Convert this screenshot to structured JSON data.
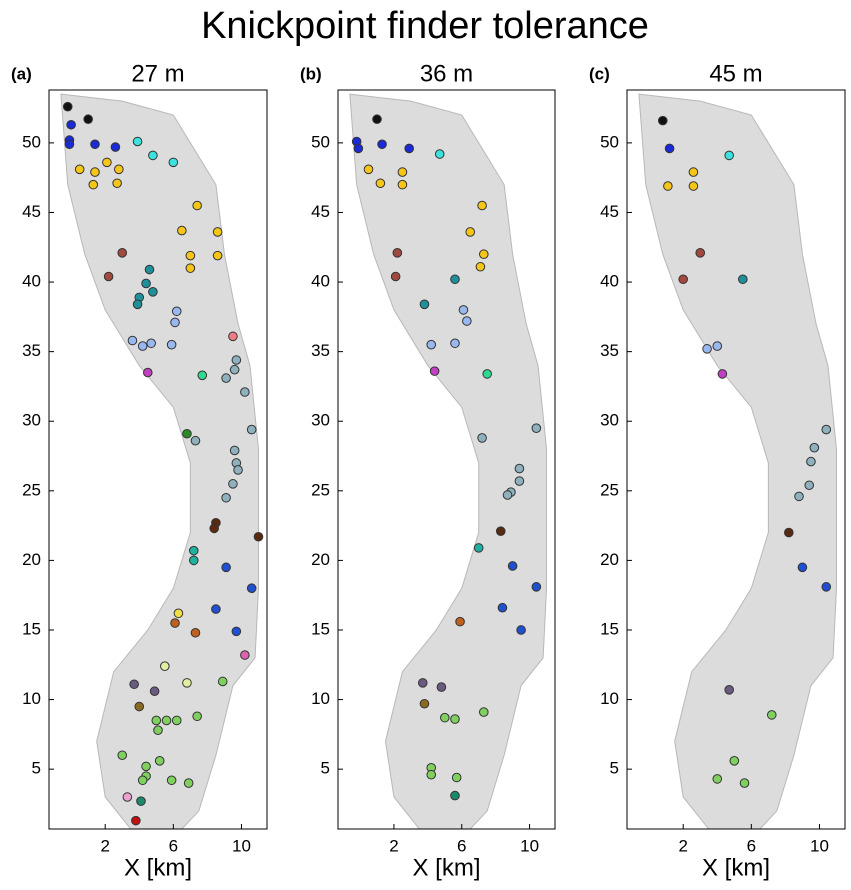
{
  "title": "Knickpoint finder tolerance",
  "chart_data": [
    {
      "type": "scatter",
      "panel_label": "(a)",
      "title": "27 m",
      "xlabel": "X [km]",
      "xlim": [
        -1.3,
        11.5
      ],
      "ylim": [
        0.7,
        53.8
      ],
      "xticks": [
        2,
        6,
        10
      ],
      "yticks": [
        5,
        10,
        15,
        20,
        25,
        30,
        35,
        40,
        45,
        50
      ],
      "series": [
        {
          "color": "#111111",
          "x": [
            -0.2,
            1.0
          ],
          "y": [
            52.6,
            51.7
          ]
        },
        {
          "color": "#1a2bd6",
          "x": [
            0.0,
            -0.1,
            -0.1,
            1.4,
            2.6
          ],
          "y": [
            51.3,
            50.2,
            49.9,
            49.9,
            49.7
          ]
        },
        {
          "color": "#3ee0e0",
          "x": [
            3.9,
            4.8,
            6.0
          ],
          "y": [
            50.1,
            49.1,
            48.6
          ]
        },
        {
          "color": "#f5c518",
          "x": [
            0.5,
            1.4,
            2.1,
            2.8,
            1.3,
            2.7,
            7.4,
            6.5,
            8.6,
            8.6,
            7.0,
            7.0
          ],
          "y": [
            48.1,
            47.9,
            48.6,
            48.1,
            47.0,
            47.1,
            45.5,
            43.7,
            43.6,
            41.9,
            41.9,
            41.0
          ]
        },
        {
          "color": "#a0493e",
          "x": [
            3.0,
            2.2
          ],
          "y": [
            42.1,
            40.4
          ]
        },
        {
          "color": "#1f8f99",
          "x": [
            4.6,
            4.4,
            4.0,
            3.9,
            4.8
          ],
          "y": [
            40.9,
            39.9,
            38.9,
            38.4,
            39.3
          ]
        },
        {
          "color": "#9ab8f0",
          "x": [
            6.2,
            6.1,
            3.6,
            4.2,
            5.9,
            4.7
          ],
          "y": [
            37.9,
            37.1,
            35.8,
            35.4,
            35.5,
            35.6
          ]
        },
        {
          "color": "#f07b84",
          "x": [
            9.5
          ],
          "y": [
            36.1
          ]
        },
        {
          "color": "#c040c0",
          "x": [
            4.5
          ],
          "y": [
            33.5
          ]
        },
        {
          "color": "#30d890",
          "x": [
            7.7
          ],
          "y": [
            33.3
          ]
        },
        {
          "color": "#8fb0bd",
          "x": [
            9.7,
            9.6,
            9.1,
            10.2,
            10.6,
            7.3,
            9.6,
            9.7,
            9.8,
            9.5,
            9.1
          ],
          "y": [
            34.4,
            33.7,
            33.1,
            32.1,
            29.4,
            28.6,
            27.9,
            27.0,
            26.5,
            25.5,
            24.5
          ]
        },
        {
          "color": "#2a8a2a",
          "x": [
            6.8
          ],
          "y": [
            29.1
          ]
        },
        {
          "color": "#5a2a10",
          "x": [
            8.5,
            8.4,
            11.0
          ],
          "y": [
            22.7,
            22.3,
            21.7
          ]
        },
        {
          "color": "#20b0a0",
          "x": [
            7.2,
            7.2
          ],
          "y": [
            20.7,
            20.0
          ]
        },
        {
          "color": "#2050d0",
          "x": [
            9.1,
            10.6,
            8.5,
            9.7
          ],
          "y": [
            19.5,
            18.0,
            16.5,
            14.9
          ]
        },
        {
          "color": "#f0e040",
          "x": [
            6.3
          ],
          "y": [
            16.2
          ]
        },
        {
          "color": "#c06020",
          "x": [
            6.1,
            7.3
          ],
          "y": [
            15.5,
            14.8
          ]
        },
        {
          "color": "#e060b0",
          "x": [
            10.2
          ],
          "y": [
            13.2
          ]
        },
        {
          "color": "#e0f0a0",
          "x": [
            5.5,
            6.8
          ],
          "y": [
            12.4,
            11.2
          ]
        },
        {
          "color": "#6a5a80",
          "x": [
            3.7,
            4.9
          ],
          "y": [
            11.1,
            10.6
          ]
        },
        {
          "color": "#8a6a20",
          "x": [
            4.0
          ],
          "y": [
            9.5
          ]
        },
        {
          "color": "#80d060",
          "x": [
            8.9,
            7.4,
            5.0,
            5.6,
            6.2,
            5.1,
            3.0,
            5.2,
            4.4,
            4.4,
            4.2,
            5.9,
            6.9
          ],
          "y": [
            11.3,
            8.8,
            8.5,
            8.5,
            8.5,
            7.8,
            6.0,
            5.6,
            5.2,
            4.5,
            4.2,
            4.2,
            4.0
          ]
        },
        {
          "color": "#f0a0d0",
          "x": [
            3.3
          ],
          "y": [
            3.0
          ]
        },
        {
          "color": "#1a8a6a",
          "x": [
            4.1
          ],
          "y": [
            2.7
          ]
        },
        {
          "color": "#c01010",
          "x": [
            3.8
          ],
          "y": [
            1.3
          ]
        }
      ]
    },
    {
      "type": "scatter",
      "panel_label": "(b)",
      "title": "36 m",
      "xlabel": "X [km]",
      "xlim": [
        -1.3,
        11.5
      ],
      "ylim": [
        0.7,
        53.8
      ],
      "xticks": [
        2,
        6,
        10
      ],
      "yticks": [
        5,
        10,
        15,
        20,
        25,
        30,
        35,
        40,
        45,
        50
      ],
      "series": [
        {
          "color": "#111111",
          "x": [
            1.0
          ],
          "y": [
            51.7
          ]
        },
        {
          "color": "#1a2bd6",
          "x": [
            -0.2,
            -0.1,
            1.3,
            2.9
          ],
          "y": [
            50.1,
            49.6,
            49.9,
            49.6
          ]
        },
        {
          "color": "#3ee0e0",
          "x": [
            4.7
          ],
          "y": [
            49.2
          ]
        },
        {
          "color": "#f5c518",
          "x": [
            0.5,
            1.2,
            2.5,
            2.5,
            7.2,
            6.5,
            7.3,
            7.1
          ],
          "y": [
            48.1,
            47.1,
            47.9,
            47.0,
            45.5,
            43.6,
            42.0,
            41.1
          ]
        },
        {
          "color": "#a0493e",
          "x": [
            2.2,
            2.1
          ],
          "y": [
            42.1,
            40.4
          ]
        },
        {
          "color": "#1f8f99",
          "x": [
            5.6,
            3.8
          ],
          "y": [
            40.2,
            38.4
          ]
        },
        {
          "color": "#9ab8f0",
          "x": [
            6.1,
            6.3,
            4.2,
            5.6
          ],
          "y": [
            38.0,
            37.2,
            35.5,
            35.6
          ]
        },
        {
          "color": "#c040c0",
          "x": [
            4.4
          ],
          "y": [
            33.6
          ]
        },
        {
          "color": "#30d890",
          "x": [
            7.5
          ],
          "y": [
            33.4
          ]
        },
        {
          "color": "#8fb0bd",
          "x": [
            7.2,
            10.4,
            9.4,
            9.4,
            8.9,
            8.7
          ],
          "y": [
            28.8,
            29.5,
            26.6,
            25.7,
            24.9,
            24.7
          ]
        },
        {
          "color": "#5a2a10",
          "x": [
            8.3
          ],
          "y": [
            22.1
          ]
        },
        {
          "color": "#20b0a0",
          "x": [
            7.0
          ],
          "y": [
            20.9
          ]
        },
        {
          "color": "#2050d0",
          "x": [
            9.0,
            10.4,
            8.4,
            9.5
          ],
          "y": [
            19.6,
            18.1,
            16.6,
            15.0
          ]
        },
        {
          "color": "#c06020",
          "x": [
            5.9
          ],
          "y": [
            15.6
          ]
        },
        {
          "color": "#6a5a80",
          "x": [
            3.7,
            4.8
          ],
          "y": [
            11.2,
            10.9
          ]
        },
        {
          "color": "#8a6a20",
          "x": [
            3.8
          ],
          "y": [
            9.7
          ]
        },
        {
          "color": "#80d060",
          "x": [
            7.3,
            5.0,
            5.6,
            4.2,
            4.2,
            5.7
          ],
          "y": [
            9.1,
            8.7,
            8.6,
            5.1,
            4.6,
            4.4
          ]
        },
        {
          "color": "#1a8a6a",
          "x": [
            5.6
          ],
          "y": [
            3.1
          ]
        }
      ]
    },
    {
      "type": "scatter",
      "panel_label": "(c)",
      "title": "45 m",
      "xlabel": "X [km]",
      "xlim": [
        -1.3,
        11.5
      ],
      "ylim": [
        0.7,
        53.8
      ],
      "xticks": [
        2,
        6,
        10
      ],
      "yticks": [
        5,
        10,
        15,
        20,
        25,
        30,
        35,
        40,
        45,
        50
      ],
      "series": [
        {
          "color": "#111111",
          "x": [
            0.8
          ],
          "y": [
            51.6
          ]
        },
        {
          "color": "#1a2bd6",
          "x": [
            1.2
          ],
          "y": [
            49.6
          ]
        },
        {
          "color": "#3ee0e0",
          "x": [
            4.7
          ],
          "y": [
            49.1
          ]
        },
        {
          "color": "#f5c518",
          "x": [
            1.1,
            2.6,
            2.6
          ],
          "y": [
            46.9,
            47.9,
            46.9
          ]
        },
        {
          "color": "#a0493e",
          "x": [
            3.0,
            2.0
          ],
          "y": [
            42.1,
            40.2
          ]
        },
        {
          "color": "#1f8f99",
          "x": [
            5.5
          ],
          "y": [
            40.2
          ]
        },
        {
          "color": "#9ab8f0",
          "x": [
            3.4,
            4.0
          ],
          "y": [
            35.2,
            35.4
          ]
        },
        {
          "color": "#c040c0",
          "x": [
            4.3
          ],
          "y": [
            33.4
          ]
        },
        {
          "color": "#8fb0bd",
          "x": [
            10.4,
            9.7,
            9.5,
            9.4,
            8.8
          ],
          "y": [
            29.4,
            28.1,
            27.1,
            25.4,
            24.6
          ]
        },
        {
          "color": "#5a2a10",
          "x": [
            8.2
          ],
          "y": [
            22.0
          ]
        },
        {
          "color": "#2050d0",
          "x": [
            9.0,
            10.4
          ],
          "y": [
            19.5,
            18.1
          ]
        },
        {
          "color": "#6a5a80",
          "x": [
            4.7
          ],
          "y": [
            10.7
          ]
        },
        {
          "color": "#80d060",
          "x": [
            7.2,
            5.0,
            4.0,
            5.6
          ],
          "y": [
            8.9,
            5.6,
            4.3,
            4.0
          ]
        }
      ]
    }
  ]
}
